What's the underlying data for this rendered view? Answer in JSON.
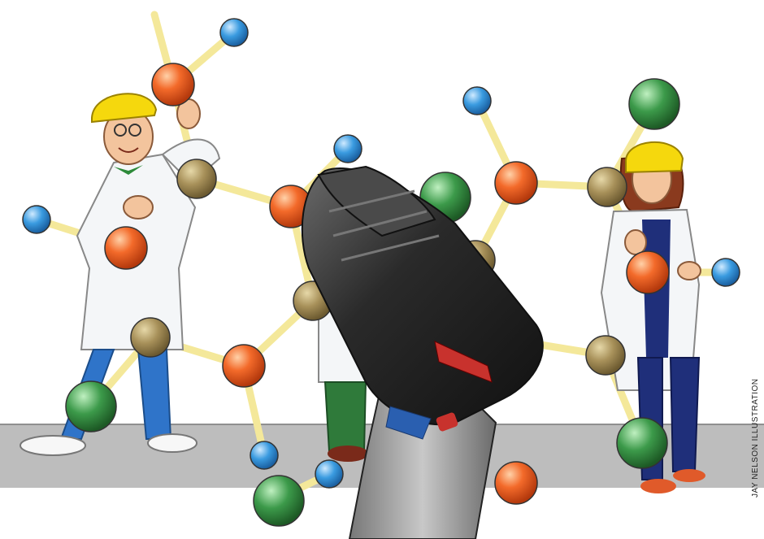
{
  "illustration": {
    "credit": "JAY NELSON ILLUSTRATION",
    "colors": {
      "atom_orange": "#f36a2a",
      "atom_tan": "#a8915a",
      "atom_blue": "#3a9be0",
      "atom_green": "#3c9a4a",
      "bond": "#f4e89a",
      "coat": "#f4f6f8",
      "hardhat": "#f5d80d",
      "pants_blue": "#2f74c9",
      "pants_green": "#2f7a3a",
      "pants_navy": "#1f2f7a",
      "drill_body": "#3a3a3a",
      "drill_grip": "#999999",
      "drill_red": "#c8322d",
      "floor": "#bdbdbd"
    }
  }
}
